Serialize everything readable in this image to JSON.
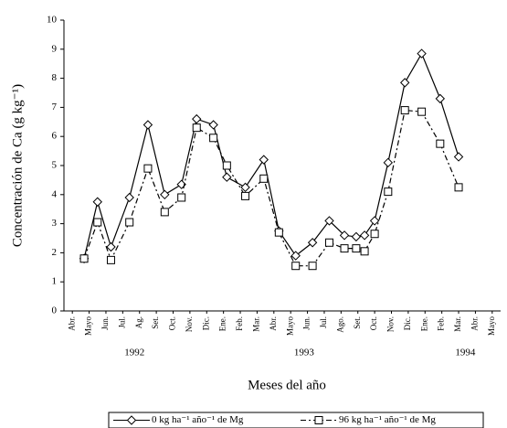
{
  "chart_data": {
    "type": "line",
    "ylabel": "Concentración de Ca (g kg⁻¹)",
    "xlabel": "Meses del año",
    "ylim": [
      0,
      10
    ],
    "yticks": [
      0,
      1,
      2,
      3,
      4,
      5,
      6,
      7,
      8,
      9,
      10
    ],
    "xlim": [
      -0.5,
      25.5
    ],
    "xticks": [
      {
        "value": 0,
        "label": "Abr."
      },
      {
        "value": 1,
        "label": "Mayo"
      },
      {
        "value": 2,
        "label": "Jun."
      },
      {
        "value": 3,
        "label": "Jul."
      },
      {
        "value": 4,
        "label": "Ag."
      },
      {
        "value": 5,
        "label": "Set."
      },
      {
        "value": 6,
        "label": "Oct."
      },
      {
        "value": 7,
        "label": "Nov."
      },
      {
        "value": 8,
        "label": "Dic."
      },
      {
        "value": 9,
        "label": "Ene."
      },
      {
        "value": 10,
        "label": "Feb."
      },
      {
        "value": 11,
        "label": "Mar."
      },
      {
        "value": 12,
        "label": "Abr."
      },
      {
        "value": 13,
        "label": "Mayo"
      },
      {
        "value": 14,
        "label": "Jun."
      },
      {
        "value": 15,
        "label": "Jul."
      },
      {
        "value": 16,
        "label": "Ago."
      },
      {
        "value": 17,
        "label": "Set."
      },
      {
        "value": 18,
        "label": "Oct."
      },
      {
        "value": 19,
        "label": "Nov."
      },
      {
        "value": 20,
        "label": "Dic."
      },
      {
        "value": 21,
        "label": "Ene."
      },
      {
        "value": 22,
        "label": "Feb."
      },
      {
        "value": 23,
        "label": "Mar."
      },
      {
        "value": 24,
        "label": "Abr."
      },
      {
        "value": 25,
        "label": "Mayo"
      }
    ],
    "year_labels": [
      {
        "value": 3.7,
        "label": "1992"
      },
      {
        "value": 13.8,
        "label": "1993"
      },
      {
        "value": 23.4,
        "label": "1994"
      }
    ],
    "x": [
      0.7,
      1.5,
      2.3,
      3.4,
      4.5,
      5.5,
      6.5,
      7.4,
      8.4,
      9.2,
      10.3,
      11.4,
      12.3,
      13.3,
      14.3,
      15.3,
      16.2,
      16.9,
      17.4,
      18.0,
      18.8,
      19.8,
      20.8,
      21.9,
      23.0
    ],
    "series": [
      {
        "name": "0 kg ha⁻¹ año⁻¹ de Mg",
        "color": "#000000",
        "marker": "diamond",
        "dash": "solid",
        "values": [
          1.8,
          3.75,
          2.2,
          3.9,
          6.4,
          4.0,
          4.35,
          6.6,
          6.4,
          4.6,
          4.25,
          5.2,
          2.75,
          1.9,
          2.35,
          3.1,
          2.6,
          2.55,
          2.6,
          3.1,
          5.1,
          7.85,
          8.85,
          7.3,
          5.3
        ]
      },
      {
        "name": "96 kg ha⁻¹ año⁻¹ de Mg",
        "color": "#000000",
        "marker": "square",
        "dash": "dashdot",
        "values": [
          1.8,
          3.05,
          1.75,
          3.05,
          4.9,
          3.4,
          3.9,
          6.3,
          5.95,
          5.0,
          3.95,
          4.55,
          2.7,
          1.55,
          1.55,
          2.35,
          2.15,
          2.15,
          2.05,
          2.65,
          4.1,
          6.9,
          6.85,
          5.75,
          4.25
        ]
      }
    ]
  }
}
